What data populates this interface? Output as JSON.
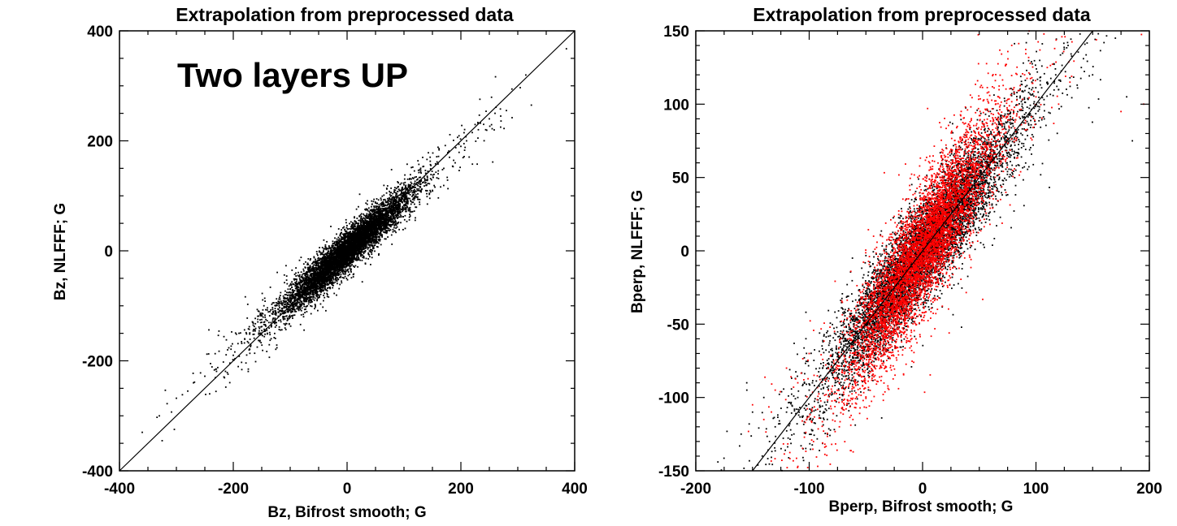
{
  "chart_data": [
    {
      "type": "scatter",
      "title": "Extrapolation from preprocessed data",
      "xlabel": "Bz, Bifrost smooth; G",
      "ylabel": "Bz, NLFFF; G",
      "xlim": [
        -400,
        400
      ],
      "ylim": [
        -400,
        400
      ],
      "xticks": [
        -400,
        -200,
        0,
        200,
        400
      ],
      "yticks": [
        -400,
        -200,
        0,
        200,
        400
      ],
      "xtick_labels": [
        "-400",
        "-200",
        "0",
        "200",
        "400"
      ],
      "ytick_labels": [
        "-400",
        "-200",
        "0",
        "200",
        "400"
      ],
      "annotation": "Two layers UP",
      "grid": false,
      "reference_line": {
        "slope": 1,
        "intercept": 0
      },
      "series": [
        {
          "color": "#000000",
          "distribution": {
            "count": 7000,
            "x_mean": 0,
            "x_sd": 55,
            "slope": 0.92,
            "scatter_sd": 17
          },
          "points": [
            [
              -360,
              -330
            ],
            [
              -330,
              -300
            ],
            [
              -300,
              -268
            ],
            [
              -280,
              -255
            ],
            [
              -270,
              -240
            ],
            [
              -250,
              -228
            ],
            [
              -240,
              -205
            ],
            [
              -230,
              -215
            ],
            [
              -210,
              -180
            ],
            [
              -200,
              -190
            ],
            [
              -190,
              -150
            ],
            [
              -180,
              -160
            ],
            [
              -165,
              -135
            ],
            [
              -150,
              -125
            ],
            [
              -140,
              -150
            ],
            [
              -130,
              -110
            ],
            [
              -120,
              -95
            ],
            [
              -110,
              -120
            ],
            [
              -100,
              -70
            ],
            [
              -90,
              -80
            ],
            [
              -60,
              -50
            ],
            [
              -30,
              -20
            ],
            [
              0,
              0
            ],
            [
              30,
              35
            ],
            [
              60,
              50
            ],
            [
              90,
              80
            ],
            [
              100,
              120
            ],
            [
              110,
              95
            ],
            [
              120,
              60
            ],
            [
              130,
              110
            ],
            [
              140,
              120
            ],
            [
              150,
              110
            ],
            [
              160,
              140
            ],
            [
              170,
              150
            ],
            [
              180,
              170
            ],
            [
              190,
              160
            ],
            [
              200,
              190
            ],
            [
              210,
              200
            ],
            [
              220,
              215
            ],
            [
              230,
              205
            ],
            [
              240,
              230
            ],
            [
              250,
              240
            ],
            [
              255,
              222
            ],
            [
              260,
              250
            ],
            [
              270,
              245
            ],
            [
              280,
              255
            ],
            [
              290,
              242
            ]
          ]
        }
      ]
    },
    {
      "type": "scatter",
      "title": "Extrapolation from preprocessed data",
      "xlabel": "Bperp, Bifrost smooth; G",
      "ylabel": "Bperp, NLFFF; G",
      "xlim": [
        -200,
        200
      ],
      "ylim": [
        -150,
        150
      ],
      "xticks": [
        -200,
        -100,
        0,
        100,
        200
      ],
      "yticks": [
        -150,
        -100,
        -50,
        0,
        50,
        100,
        150
      ],
      "xtick_labels": [
        "-200",
        "-100",
        "0",
        "100",
        "200"
      ],
      "ytick_labels": [
        "-150",
        "-100",
        "-50",
        "0",
        "50",
        "100",
        "150"
      ],
      "grid": false,
      "reference_line": {
        "slope": 1,
        "intercept": 0
      },
      "series": [
        {
          "color": "#000000",
          "distribution": {
            "count": 7000,
            "x_mean": 0,
            "x_sd": 40,
            "slope": 1.0,
            "scatter_sd": 16
          },
          "points": [
            [
              -160,
              -125
            ],
            [
              -155,
              -95
            ],
            [
              -150,
              -110
            ],
            [
              -140,
              -100
            ],
            [
              -135,
              -130
            ],
            [
              -130,
              -120
            ],
            [
              -120,
              -110
            ],
            [
              -110,
              -100
            ],
            [
              -100,
              -95
            ],
            [
              -90,
              -85
            ],
            [
              110,
              115
            ],
            [
              120,
              110
            ],
            [
              130,
              118
            ],
            [
              140,
              125
            ],
            [
              150,
              120
            ],
            [
              155,
              148
            ],
            [
              160,
              142
            ],
            [
              170,
              145
            ],
            [
              180,
              105
            ],
            [
              185,
              75
            ]
          ]
        },
        {
          "color": "#ff0000",
          "distribution": {
            "count": 6000,
            "x_mean": 0,
            "x_sd": 32,
            "slope": 1.2,
            "scatter_sd": 20
          },
          "points": [
            [
              -150,
              -105
            ],
            [
              -140,
              -115
            ],
            [
              -130,
              -95
            ],
            [
              -120,
              -80
            ],
            [
              -110,
              -90
            ],
            [
              -100,
              -70
            ],
            [
              80,
              110
            ],
            [
              90,
              120
            ],
            [
              100,
              105
            ],
            [
              110,
              125
            ],
            [
              120,
              100
            ],
            [
              130,
              115
            ],
            [
              175,
              95
            ],
            [
              195,
              100
            ]
          ]
        }
      ]
    }
  ]
}
